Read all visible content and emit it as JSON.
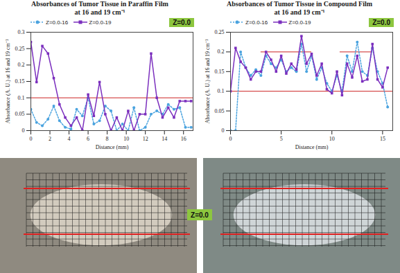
{
  "chart_data": [
    {
      "type": "line",
      "title": "Absorbances of Tumor Tissue in Paraffin Film",
      "subtitle": "at 16 and 19 cm⁻¹",
      "badge": "Z=0.0",
      "x_label": "Distance (mm)",
      "y_label": "Absorbance (A. U.) at 16 and 19 cm⁻¹",
      "x": [
        0,
        0.6,
        1.2,
        1.8,
        2.4,
        3.0,
        3.6,
        4.2,
        4.8,
        5.4,
        6.0,
        6.6,
        7.2,
        7.8,
        8.4,
        9.0,
        9.6,
        10.2,
        10.8,
        11.4,
        12.0,
        12.6,
        13.2,
        13.8,
        14.4,
        15.0,
        15.6,
        16.2,
        16.8
      ],
      "series": [
        {
          "name": "Z=0.0-16",
          "color": "#4aa3df",
          "marker": "circle",
          "line_style": "dotted",
          "values": [
            0.065,
            0.025,
            0.015,
            0.035,
            0.075,
            0.03,
            0.01,
            0.005,
            0.065,
            0.045,
            0.1,
            0.02,
            0.03,
            0.075,
            0.06,
            0.0,
            0.02,
            0.0,
            0.07,
            0.0,
            0.01,
            0.05,
            0.06,
            0.05,
            0.08,
            0.065,
            0.07,
            0.01,
            0.01
          ]
        },
        {
          "name": "Z=0.0-19",
          "color": "#7b2fbe",
          "marker": "square",
          "line_style": "solid",
          "values": [
            0.27,
            0.148,
            0.258,
            0.235,
            0.16,
            0.08,
            0.04,
            0.015,
            0.04,
            0.0,
            0.11,
            0.045,
            0.148,
            0.05,
            0.0,
            0.04,
            0.0,
            0.06,
            0.0,
            0.05,
            0.05,
            0.235,
            0.1,
            0.04,
            0.07,
            0.04,
            0.09,
            0.09,
            0.09
          ]
        }
      ],
      "reference_lines": [
        {
          "value": 0.1,
          "from": 0,
          "to": 17,
          "color": "#cc2222"
        }
      ],
      "xlim": [
        0,
        17
      ],
      "xticks": [
        0,
        2,
        4,
        6,
        8,
        10,
        12,
        14,
        16
      ],
      "ylim": [
        0,
        0.3
      ],
      "yticks": [
        0,
        0.05,
        0.1,
        0.15,
        0.2,
        0.25,
        0.3
      ],
      "grid": false
    },
    {
      "type": "line",
      "title": "Absorbances of Tumor Tissue in Compound Film",
      "subtitle": "at 16 and 19 cm⁻¹",
      "badge": "Z=0.0",
      "x_label": "Distance (mm)",
      "y_label": "Absorbance (A. U.) at 16 and 19 cm⁻¹",
      "x": [
        0,
        0.5,
        1,
        1.5,
        2,
        2.5,
        3,
        3.5,
        4,
        4.5,
        5,
        5.5,
        6,
        6.5,
        7,
        7.5,
        8,
        8.5,
        9,
        9.5,
        10,
        10.5,
        11,
        11.5,
        12,
        12.5,
        13,
        13.5,
        14,
        14.5,
        15,
        15.5
      ],
      "series": [
        {
          "name": "Z=0.0-16",
          "color": "#4aa3df",
          "marker": "circle",
          "line_style": "dotted",
          "values": [
            0.0,
            0.0,
            0.2,
            0.16,
            0.14,
            0.155,
            0.14,
            0.19,
            0.17,
            0.16,
            0.18,
            0.15,
            0.16,
            0.15,
            0.22,
            0.15,
            0.19,
            0.13,
            0.16,
            0.12,
            0.1,
            0.14,
            0.1,
            0.19,
            0.15,
            0.225,
            0.15,
            0.14,
            0.21,
            0.15,
            0.12,
            0.06
          ]
        },
        {
          "name": "Z=0.0-19",
          "color": "#7b2fbe",
          "marker": "square",
          "line_style": "solid",
          "values": [
            0.1,
            0.21,
            0.175,
            0.16,
            0.13,
            0.15,
            0.15,
            0.2,
            0.18,
            0.15,
            0.19,
            0.145,
            0.17,
            0.155,
            0.24,
            0.17,
            0.195,
            0.14,
            0.17,
            0.105,
            0.095,
            0.15,
            0.09,
            0.17,
            0.135,
            0.19,
            0.125,
            0.13,
            0.22,
            0.13,
            0.11,
            0.16
          ]
        }
      ],
      "reference_lines": [
        {
          "value": 0.1,
          "from": 0,
          "to": 16,
          "color": "#cc2222"
        },
        {
          "value": 0.2,
          "from": 3,
          "to": 8,
          "color": "#cc2222"
        },
        {
          "value": 0.2,
          "from": 10.8,
          "to": 14,
          "color": "#cc2222"
        }
      ],
      "xlim": [
        0,
        16
      ],
      "xticks": [
        0,
        5,
        10,
        15
      ],
      "ylim": [
        0,
        0.25
      ],
      "yticks": [
        0,
        0.05,
        0.1,
        0.15,
        0.2,
        0.25
      ],
      "grid": false
    }
  ],
  "photos_label": "Z=0.0"
}
